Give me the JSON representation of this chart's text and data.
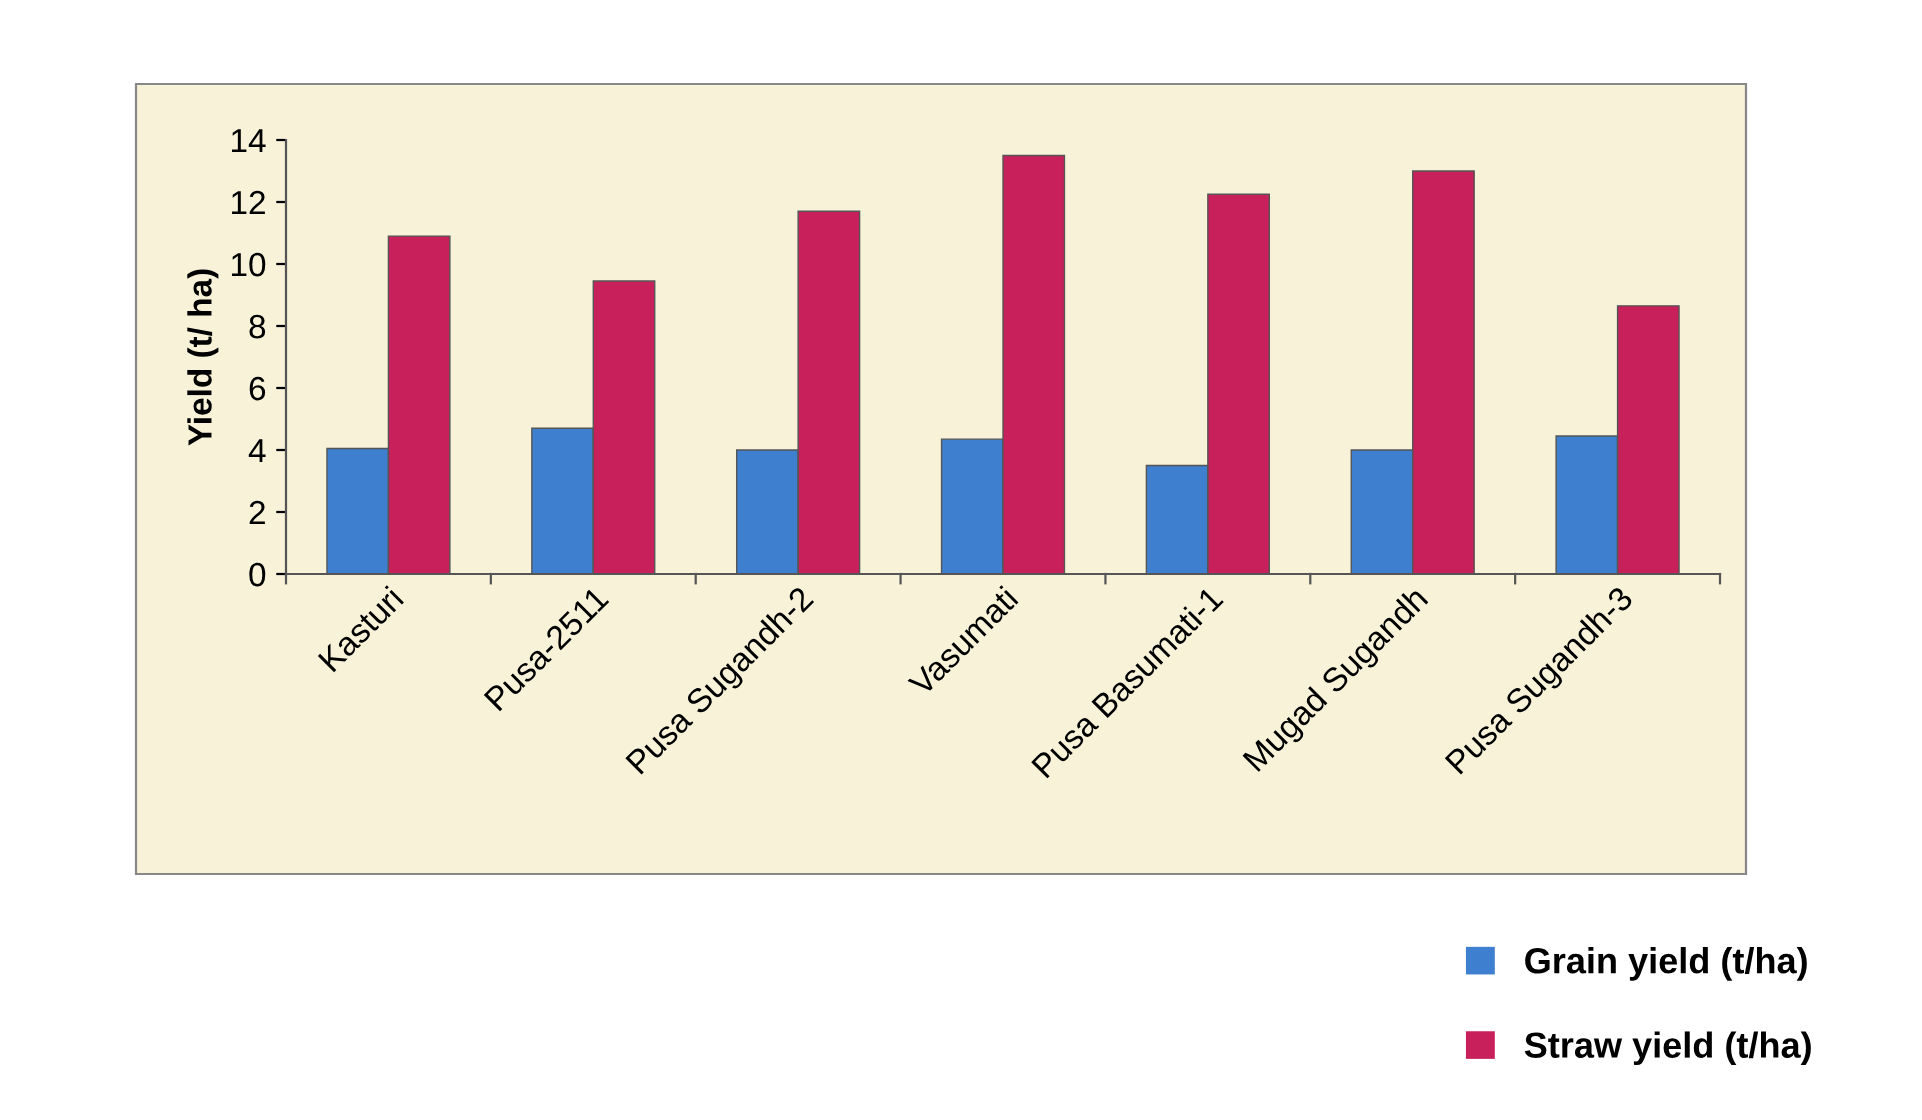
{
  "chart_data": {
    "type": "bar",
    "ylabel": "Yield (t/ ha)",
    "categories": [
      "Kasturi",
      "Pusa-2511",
      "Pusa Sugandh-2",
      "Vasumati",
      "Pusa Basumati-1",
      "Mugad Sugandh",
      "Pusa Sugandh-3"
    ],
    "series": [
      {
        "name": "Grain yield (t/ha)",
        "color": "#3f7fcf",
        "values": [
          4.05,
          4.7,
          4.0,
          4.35,
          3.5,
          4.0,
          4.45
        ]
      },
      {
        "name": "Straw yield (t/ha)",
        "color": "#c8205a",
        "values": [
          10.9,
          9.45,
          11.7,
          13.5,
          12.25,
          13.0,
          8.65
        ]
      }
    ],
    "ylim": [
      0,
      14
    ],
    "yticks": [
      0,
      2,
      4,
      6,
      8,
      10,
      12,
      14
    ],
    "grid": false,
    "legend": "bottom right"
  }
}
